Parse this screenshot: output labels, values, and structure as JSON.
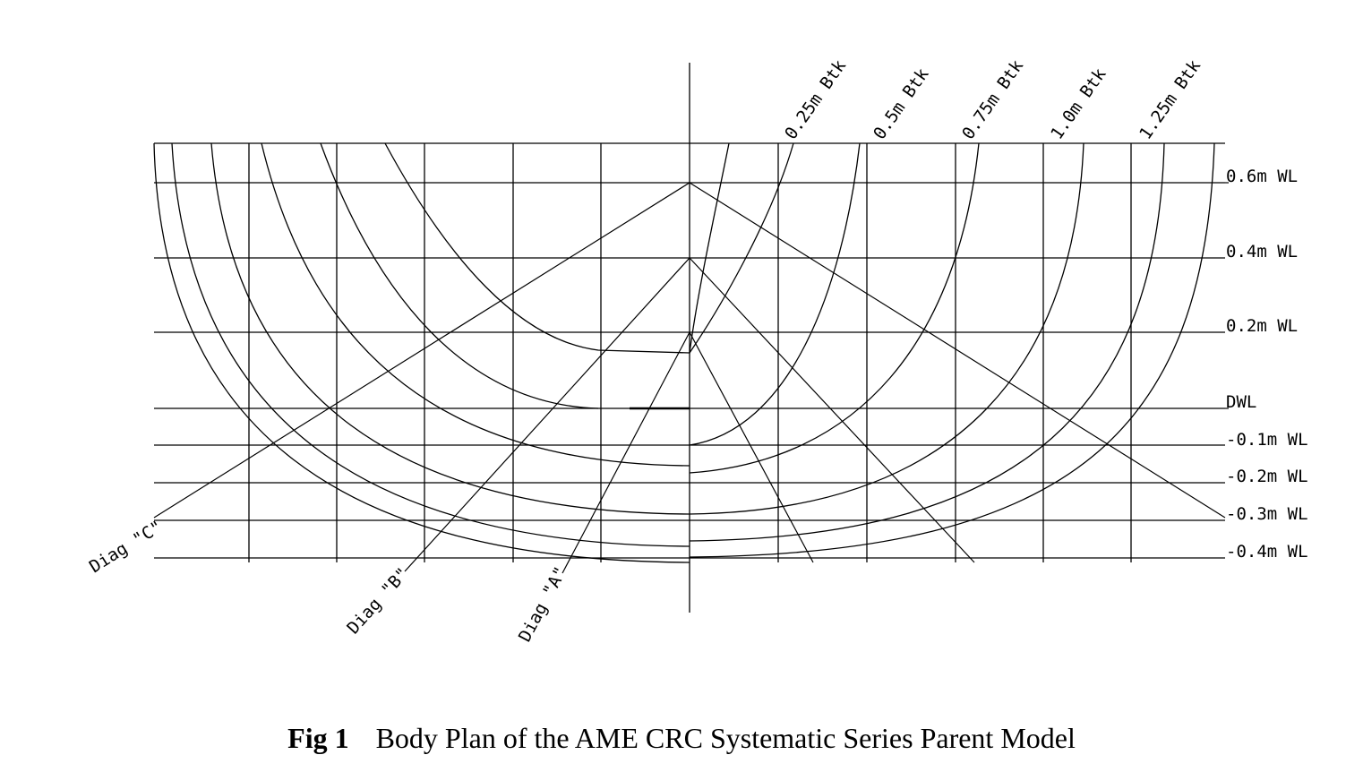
{
  "diagram": {
    "buttock_labels": [
      "0.25m Btk",
      "0.5m Btk",
      "0.75m Btk",
      "1.0m Btk",
      "1.25m Btk"
    ],
    "waterline_labels": [
      "0.6m WL",
      "0.4m WL",
      "0.2m WL",
      "DWL",
      "-0.1m WL",
      "-0.2m WL",
      "-0.3m WL",
      "-0.4m WL"
    ],
    "diagonal_labels": [
      "Diag \"C\"",
      "Diag \"B\"",
      "Diag \"A\""
    ]
  },
  "caption": {
    "number": "Fig 1",
    "text": "Body Plan of the AME CRC Systematic Series Parent Model"
  }
}
